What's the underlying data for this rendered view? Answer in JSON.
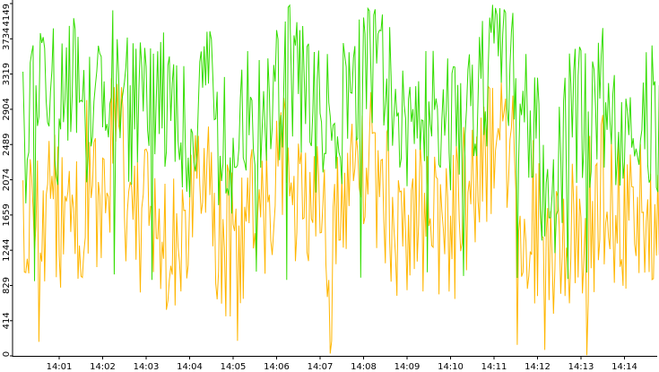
{
  "chart_data": {
    "type": "line",
    "title": "",
    "xlabel": "",
    "ylabel": "",
    "ylim": [
      0,
      4149
    ],
    "y_ticks": [
      "0",
      "414",
      "829",
      "1244",
      "1659",
      "2074",
      "2489",
      "2904",
      "3319",
      "3734",
      "4149"
    ],
    "x_ticks": [
      "14:01",
      "14:02",
      "14:03",
      "14:04",
      "14:05",
      "14:06",
      "14:07",
      "14:08",
      "14:09",
      "14:10",
      "14:11",
      "14:12",
      "14:13",
      "14:14"
    ],
    "x_start": "14:00:10",
    "sample_interval_s": 2,
    "grid": false,
    "legend": "none",
    "series": [
      {
        "color": "#33dd00",
        "summary": {
          "min": 829,
          "max": 4149,
          "typical_low": 1800,
          "typical_high": 3400
        },
        "anchors": [
          [
            "14:00:10",
            2600
          ],
          [
            "14:00:30",
            2900
          ],
          [
            "14:00:50",
            3200
          ],
          [
            "14:01:00",
            2800
          ],
          [
            "14:01:20",
            3100
          ],
          [
            "14:01:40",
            2700
          ],
          [
            "14:02:00",
            3000
          ],
          [
            "14:02:15",
            3550
          ],
          [
            "14:02:40",
            2800
          ],
          [
            "14:03:00",
            3100
          ],
          [
            "14:03:30",
            2900
          ],
          [
            "14:04:00",
            2700
          ],
          [
            "14:04:20",
            3300
          ],
          [
            "14:04:40",
            2600
          ],
          [
            "14:05:00",
            2500
          ],
          [
            "14:05:30",
            2900
          ],
          [
            "14:06:00",
            3000
          ],
          [
            "14:06:20",
            3500
          ],
          [
            "14:06:50",
            2700
          ],
          [
            "14:07:20",
            2800
          ],
          [
            "14:07:50",
            3100
          ],
          [
            "14:08:10",
            3650
          ],
          [
            "14:08:40",
            3000
          ],
          [
            "14:09:00",
            2700
          ],
          [
            "14:09:30",
            2900
          ],
          [
            "14:10:00",
            2800
          ],
          [
            "14:10:30",
            3000
          ],
          [
            "14:10:50",
            3300
          ],
          [
            "14:11:05",
            4149
          ],
          [
            "14:11:20",
            3400
          ],
          [
            "14:11:40",
            3100
          ],
          [
            "14:12:00",
            2700
          ],
          [
            "14:12:15",
            1300
          ],
          [
            "14:12:30",
            2300
          ],
          [
            "14:12:50",
            2900
          ],
          [
            "14:13:10",
            2700
          ],
          [
            "14:13:30",
            3000
          ],
          [
            "14:13:50",
            2800
          ],
          [
            "14:14:10",
            3100
          ],
          [
            "14:14:30",
            2900
          ],
          [
            "14:14:50",
            2600
          ],
          [
            "14:15:00",
            2700
          ]
        ]
      },
      {
        "color": "#ffb600",
        "summary": {
          "min": 0,
          "max": 3300,
          "typical_low": 800,
          "typical_high": 2600
        },
        "anchors": [
          [
            "14:00:10",
            1600
          ],
          [
            "14:00:30",
            1400
          ],
          [
            "14:00:50",
            2000
          ],
          [
            "14:01:00",
            1700
          ],
          [
            "14:01:20",
            1500
          ],
          [
            "14:01:40",
            2100
          ],
          [
            "14:02:00",
            1400
          ],
          [
            "14:02:15",
            2900
          ],
          [
            "14:02:40",
            1600
          ],
          [
            "14:03:00",
            1800
          ],
          [
            "14:03:30",
            1500
          ],
          [
            "14:04:00",
            1700
          ],
          [
            "14:04:20",
            2200
          ],
          [
            "14:04:40",
            1400
          ],
          [
            "14:05:00",
            1300
          ],
          [
            "14:05:30",
            1800
          ],
          [
            "14:06:00",
            1900
          ],
          [
            "14:06:20",
            2200
          ],
          [
            "14:06:50",
            1500
          ],
          [
            "14:07:20",
            1700
          ],
          [
            "14:07:50",
            2000
          ],
          [
            "14:08:10",
            2300
          ],
          [
            "14:08:40",
            1700
          ],
          [
            "14:09:00",
            1500
          ],
          [
            "14:09:30",
            1700
          ],
          [
            "14:10:00",
            1600
          ],
          [
            "14:10:30",
            1800
          ],
          [
            "14:10:50",
            2200
          ],
          [
            "14:11:05",
            3300
          ],
          [
            "14:11:20",
            2200
          ],
          [
            "14:11:40",
            1800
          ],
          [
            "14:12:00",
            1500
          ],
          [
            "14:12:15",
            700
          ],
          [
            "14:12:30",
            1300
          ],
          [
            "14:12:50",
            1700
          ],
          [
            "14:13:10",
            1600
          ],
          [
            "14:13:30",
            1900
          ],
          [
            "14:13:50",
            1600
          ],
          [
            "14:14:10",
            1800
          ],
          [
            "14:14:30",
            1700
          ],
          [
            "14:14:50",
            1400
          ],
          [
            "14:15:00",
            1500
          ]
        ]
      }
    ]
  }
}
